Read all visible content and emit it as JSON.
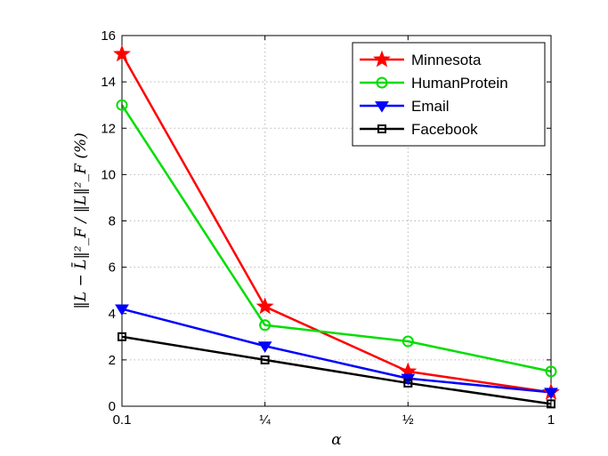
{
  "chart_data": {
    "type": "line",
    "title": "",
    "xlabel": "α",
    "ylabel": "‖L − L̄‖²_F / ‖L‖²_F (%)",
    "categories": [
      "0.1",
      "¼",
      "½",
      "1"
    ],
    "yticks": [
      "0",
      "2",
      "4",
      "6",
      "8",
      "10",
      "12",
      "14",
      "16"
    ],
    "ylim": [
      0,
      16
    ],
    "grid": true,
    "legend_position": "top-right",
    "series": [
      {
        "name": "Minnesota",
        "color": "#ff0000",
        "marker": "star",
        "values": [
          15.2,
          4.3,
          1.5,
          0.6
        ]
      },
      {
        "name": "HumanProtein",
        "color": "#00dd00",
        "marker": "circle",
        "values": [
          13.0,
          3.5,
          2.8,
          1.5
        ]
      },
      {
        "name": "Email",
        "color": "#0000ff",
        "marker": "triangle-down",
        "values": [
          4.2,
          2.6,
          1.2,
          0.6
        ]
      },
      {
        "name": "Facebook",
        "color": "#000000",
        "marker": "square",
        "values": [
          3.0,
          2.0,
          1.0,
          0.1
        ]
      }
    ]
  }
}
